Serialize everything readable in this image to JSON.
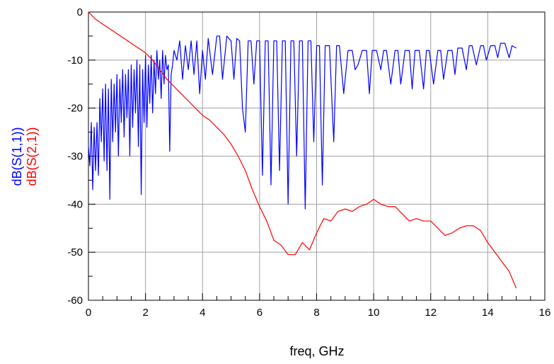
{
  "chart_data": {
    "type": "line",
    "xlabel": "freq, GHz",
    "ylabels": [
      "dB(S(1,1))",
      "dB(S(2,1))"
    ],
    "xlim": [
      0,
      16
    ],
    "ylim": [
      -60,
      0
    ],
    "x_ticks": [
      "0",
      "2",
      "4",
      "6",
      "8",
      "10",
      "12",
      "14",
      "16"
    ],
    "y_ticks": [
      "0",
      "-10",
      "-20",
      "-30",
      "-40",
      "-50",
      "-60"
    ],
    "grid": true,
    "series": [
      {
        "name": "dB(S(1,1))",
        "color": "#0000ff",
        "x": [
          0.0,
          0.05,
          0.1,
          0.15,
          0.2,
          0.25,
          0.3,
          0.35,
          0.4,
          0.45,
          0.5,
          0.55,
          0.6,
          0.65,
          0.7,
          0.75,
          0.8,
          0.85,
          0.9,
          0.95,
          1.0,
          1.05,
          1.1,
          1.15,
          1.2,
          1.25,
          1.3,
          1.35,
          1.4,
          1.45,
          1.5,
          1.55,
          1.6,
          1.65,
          1.7,
          1.75,
          1.8,
          1.85,
          1.9,
          1.95,
          2.0,
          2.05,
          2.1,
          2.15,
          2.2,
          2.25,
          2.3,
          2.35,
          2.4,
          2.45,
          2.5,
          2.55,
          2.6,
          2.65,
          2.7,
          2.75,
          2.8,
          2.85,
          2.9,
          2.95,
          3.0,
          3.1,
          3.2,
          3.3,
          3.4,
          3.5,
          3.6,
          3.7,
          3.8,
          3.9,
          4.0,
          4.1,
          4.2,
          4.35,
          4.5,
          4.6,
          4.7,
          4.85,
          5.0,
          5.1,
          5.2,
          5.3,
          5.4,
          5.5,
          5.6,
          5.7,
          5.8,
          5.9,
          6.0,
          6.1,
          6.2,
          6.3,
          6.4,
          6.5,
          6.6,
          6.7,
          6.8,
          6.9,
          7.0,
          7.1,
          7.2,
          7.3,
          7.4,
          7.5,
          7.6,
          7.7,
          7.8,
          7.9,
          8.0,
          8.1,
          8.2,
          8.3,
          8.45,
          8.6,
          8.7,
          8.8,
          8.95,
          9.1,
          9.25,
          9.35,
          9.45,
          9.6,
          9.75,
          9.85,
          9.95,
          10.1,
          10.25,
          10.35,
          10.45,
          10.6,
          10.75,
          10.85,
          10.95,
          11.1,
          11.25,
          11.35,
          11.45,
          11.6,
          11.75,
          11.85,
          11.95,
          12.1,
          12.25,
          12.35,
          12.45,
          12.6,
          12.75,
          12.85,
          12.95,
          13.1,
          13.25,
          13.35,
          13.45,
          13.6,
          13.75,
          13.85,
          13.95,
          14.1,
          14.25,
          14.35,
          14.45,
          14.6,
          14.75,
          14.85,
          15.0
        ],
        "y": [
          -28,
          -32,
          -23,
          -37,
          -24,
          -33,
          -23,
          -34,
          -18,
          -27,
          -16,
          -31,
          -15,
          -33,
          -16,
          -39,
          -14,
          -27,
          -15,
          -25,
          -13,
          -30,
          -14,
          -23,
          -12,
          -26,
          -13,
          -22,
          -12,
          -30,
          -11,
          -24,
          -12,
          -21,
          -10,
          -28,
          -11,
          -38,
          -12,
          -23,
          -9,
          -24,
          -11,
          -19,
          -9,
          -21,
          -10,
          -17,
          -8,
          -14,
          -10,
          -18,
          -8,
          -15,
          -9,
          -12,
          -11,
          -29,
          -13,
          -11,
          -8,
          -10,
          -6,
          -14,
          -7,
          -12,
          -6,
          -13,
          -6,
          -17,
          -8,
          -14,
          -5.5,
          -13,
          -5,
          -5,
          -14,
          -5,
          -6,
          -14,
          -5.5,
          -6,
          -20,
          -25,
          -6,
          -6,
          -15,
          -6,
          -6,
          -34,
          -6,
          -6,
          -36,
          -6,
          -6,
          -33,
          -6,
          -6,
          -40,
          -6,
          -6,
          -30,
          -6,
          -6,
          -41,
          -6,
          -6,
          -27,
          -7,
          -7,
          -36,
          -7,
          -7,
          -27,
          -7,
          -7,
          -17,
          -8,
          -8,
          -12,
          -11,
          -8,
          -8,
          -17,
          -8,
          -8,
          -12,
          -8,
          -8,
          -15,
          -8,
          -8,
          -15,
          -8,
          -8,
          -16,
          -8,
          -8,
          -16,
          -8,
          -8,
          -15,
          -8,
          -8,
          -14,
          -8,
          -8,
          -13,
          -7.5,
          -7.5,
          -12,
          -7,
          -7,
          -11,
          -7,
          -7,
          -10,
          -7,
          -7,
          -9.5,
          -6.5,
          -6.5,
          -9.5,
          -7,
          -7.5
        ]
      },
      {
        "name": "dB(S(2,1))",
        "color": "#ff0000",
        "x": [
          0.0,
          0.25,
          0.5,
          0.75,
          1.0,
          1.25,
          1.5,
          1.75,
          2.0,
          2.25,
          2.5,
          2.75,
          3.0,
          3.25,
          3.5,
          3.75,
          4.0,
          4.25,
          4.5,
          4.75,
          5.0,
          5.25,
          5.5,
          5.75,
          6.0,
          6.25,
          6.5,
          6.75,
          7.0,
          7.25,
          7.5,
          7.75,
          8.0,
          8.25,
          8.5,
          8.75,
          9.0,
          9.25,
          9.5,
          9.75,
          10.0,
          10.25,
          10.5,
          10.75,
          11.0,
          11.25,
          11.5,
          11.75,
          12.0,
          12.25,
          12.5,
          12.75,
          13.0,
          13.25,
          13.5,
          13.75,
          14.0,
          14.25,
          14.5,
          14.75,
          15.0
        ],
        "y": [
          0,
          -1.5,
          -2.5,
          -3.5,
          -4.5,
          -5.5,
          -6.5,
          -7.5,
          -8.5,
          -10,
          -12,
          -14,
          -15.5,
          -17,
          -18.5,
          -20,
          -21.5,
          -22.5,
          -24,
          -25.5,
          -27.5,
          -30,
          -33,
          -37,
          -40.5,
          -43.5,
          -47.5,
          -48.5,
          -50.5,
          -50.5,
          -48,
          -49.5,
          -46,
          -43,
          -43.5,
          -41.5,
          -41,
          -41.5,
          -40.5,
          -40,
          -39,
          -40,
          -40.5,
          -40.5,
          -42,
          -43.5,
          -43,
          -43.5,
          -43.5,
          -45,
          -46.5,
          -46,
          -45,
          -44.5,
          -44.5,
          -45.5,
          -48,
          -50,
          -52,
          -54,
          -57.5
        ]
      }
    ]
  }
}
